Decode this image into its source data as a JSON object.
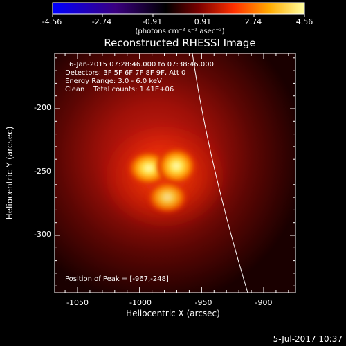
{
  "colorbar": {
    "tick_labels": [
      "-4.56",
      "-2.74",
      "-0.91",
      "0.91",
      "2.74",
      "4.56"
    ],
    "units_label": "(photons cm⁻² s⁻¹ asec⁻²)",
    "colors": [
      "#0000ff",
      "#3a0080",
      "#000000",
      "#7a0000",
      "#ff3000",
      "#ffaa00",
      "#ffff80"
    ]
  },
  "plot": {
    "title": "Reconstructed RHESSI Image",
    "info_lines": [
      "6-Jan-2015 07:28:46.000 to 07:38:46.000",
      "Detectors: 3F 5F 6F 7F 8F 9F, Att 0",
      "Energy Range: 3.0 - 6.0 keV",
      "Clean    Total counts: 1.41E+06"
    ],
    "peak_label": "Position of Peak = [-967,-248]",
    "xlabel": "Heliocentric X (arcsec)",
    "ylabel": "Heliocentric Y (arcsec)",
    "x_ticks": [
      "-1050",
      "-1000",
      "-950",
      "-900"
    ],
    "y_ticks": [
      "-200",
      "-250",
      "-300"
    ]
  },
  "footer": {
    "timestamp": "5-Jul-2017 10:37"
  }
}
